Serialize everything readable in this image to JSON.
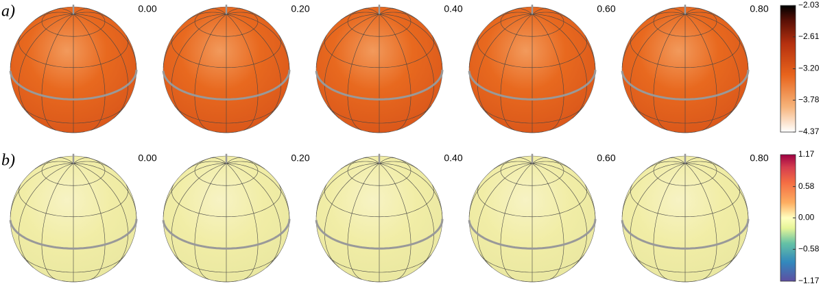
{
  "panels": [
    {
      "label": "a)",
      "phases": [
        "0.00",
        "0.20",
        "0.40",
        "0.60",
        "0.80"
      ],
      "colorbar": {
        "ticks": [
          {
            "value": -2.03,
            "label": "−2.03"
          },
          {
            "value": -2.61,
            "label": "−2.61"
          },
          {
            "value": -3.2,
            "label": "−3.20"
          },
          {
            "value": -3.78,
            "label": "−3.78"
          },
          {
            "value": -4.37,
            "label": "−4.37"
          }
        ]
      }
    },
    {
      "label": "b)",
      "phases": [
        "0.00",
        "0.20",
        "0.40",
        "0.60",
        "0.80"
      ],
      "colorbar": {
        "ticks": [
          {
            "value": 1.17,
            "label": "1.17"
          },
          {
            "value": 0.58,
            "label": "0.58"
          },
          {
            "value": 0,
            "label": "0.00"
          },
          {
            "value": -0.58,
            "label": "−0.58"
          },
          {
            "value": -1.17,
            "label": "−1.17"
          }
        ]
      }
    }
  ]
}
